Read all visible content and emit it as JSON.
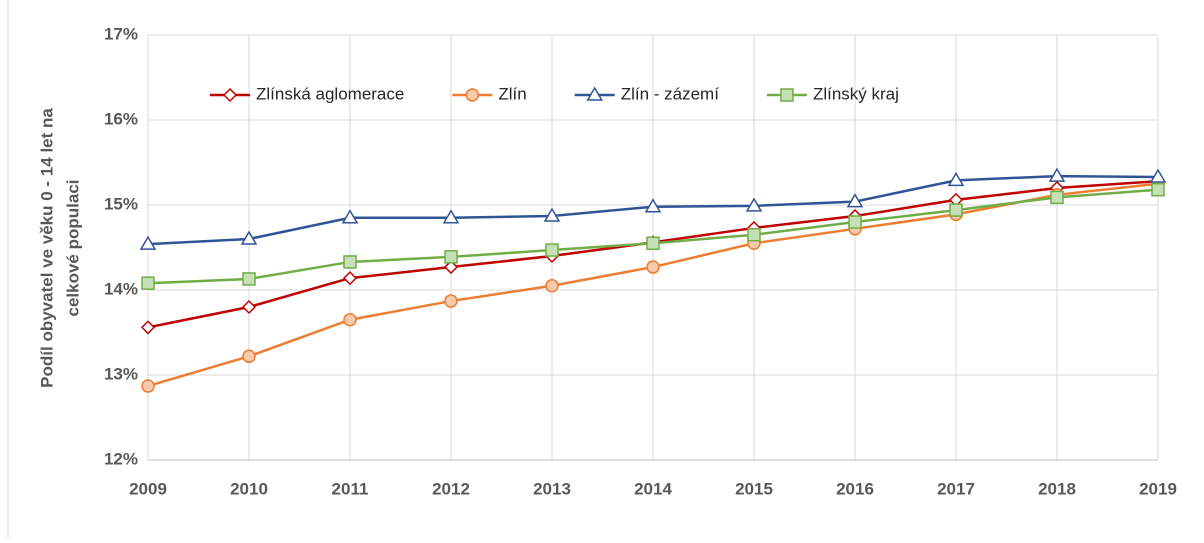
{
  "chart_data": {
    "type": "line",
    "ylabel": [
      "Podíl obyvatel ve věku 0 - 14 let na",
      "celkové populaci"
    ],
    "categories": [
      "2009",
      "2010",
      "2011",
      "2012",
      "2013",
      "2014",
      "2015",
      "2016",
      "2017",
      "2018",
      "2019"
    ],
    "series": [
      {
        "name": "Zlínská aglomerace",
        "color": "#c00000",
        "marker": "diamond",
        "marker_fill": "#ffffff",
        "values": [
          13.56,
          13.8,
          14.14,
          14.27,
          14.4,
          14.56,
          14.73,
          14.87,
          15.06,
          15.2,
          15.28
        ]
      },
      {
        "name": "Zlín",
        "color": "#ed7d31",
        "marker": "circle",
        "marker_fill": "#f8cbad",
        "values": [
          12.87,
          13.22,
          13.65,
          13.87,
          14.05,
          14.27,
          14.55,
          14.72,
          14.89,
          15.12,
          15.25
        ]
      },
      {
        "name": "Zlín - zázemí",
        "color": "#2f5597",
        "marker": "triangle",
        "marker_fill": "#ffffff",
        "values": [
          14.54,
          14.6,
          14.85,
          14.85,
          14.87,
          14.98,
          14.99,
          15.04,
          15.29,
          15.34,
          15.33
        ]
      },
      {
        "name": "Zlínský kraj",
        "color": "#70ad47",
        "marker": "square",
        "marker_fill": "#c5e0b4",
        "values": [
          14.08,
          14.13,
          14.33,
          14.39,
          14.47,
          14.55,
          14.65,
          14.8,
          14.94,
          15.09,
          15.18
        ]
      }
    ],
    "ylim": [
      12,
      17
    ],
    "yticks": [
      {
        "value": 12,
        "label": "12%"
      },
      {
        "value": 13,
        "label": "13%"
      },
      {
        "value": 14,
        "label": "14%"
      },
      {
        "value": 15,
        "label": "15%"
      },
      {
        "value": 16,
        "label": "16%"
      },
      {
        "value": 17,
        "label": "17%"
      }
    ],
    "grid": true,
    "legend": "top"
  }
}
